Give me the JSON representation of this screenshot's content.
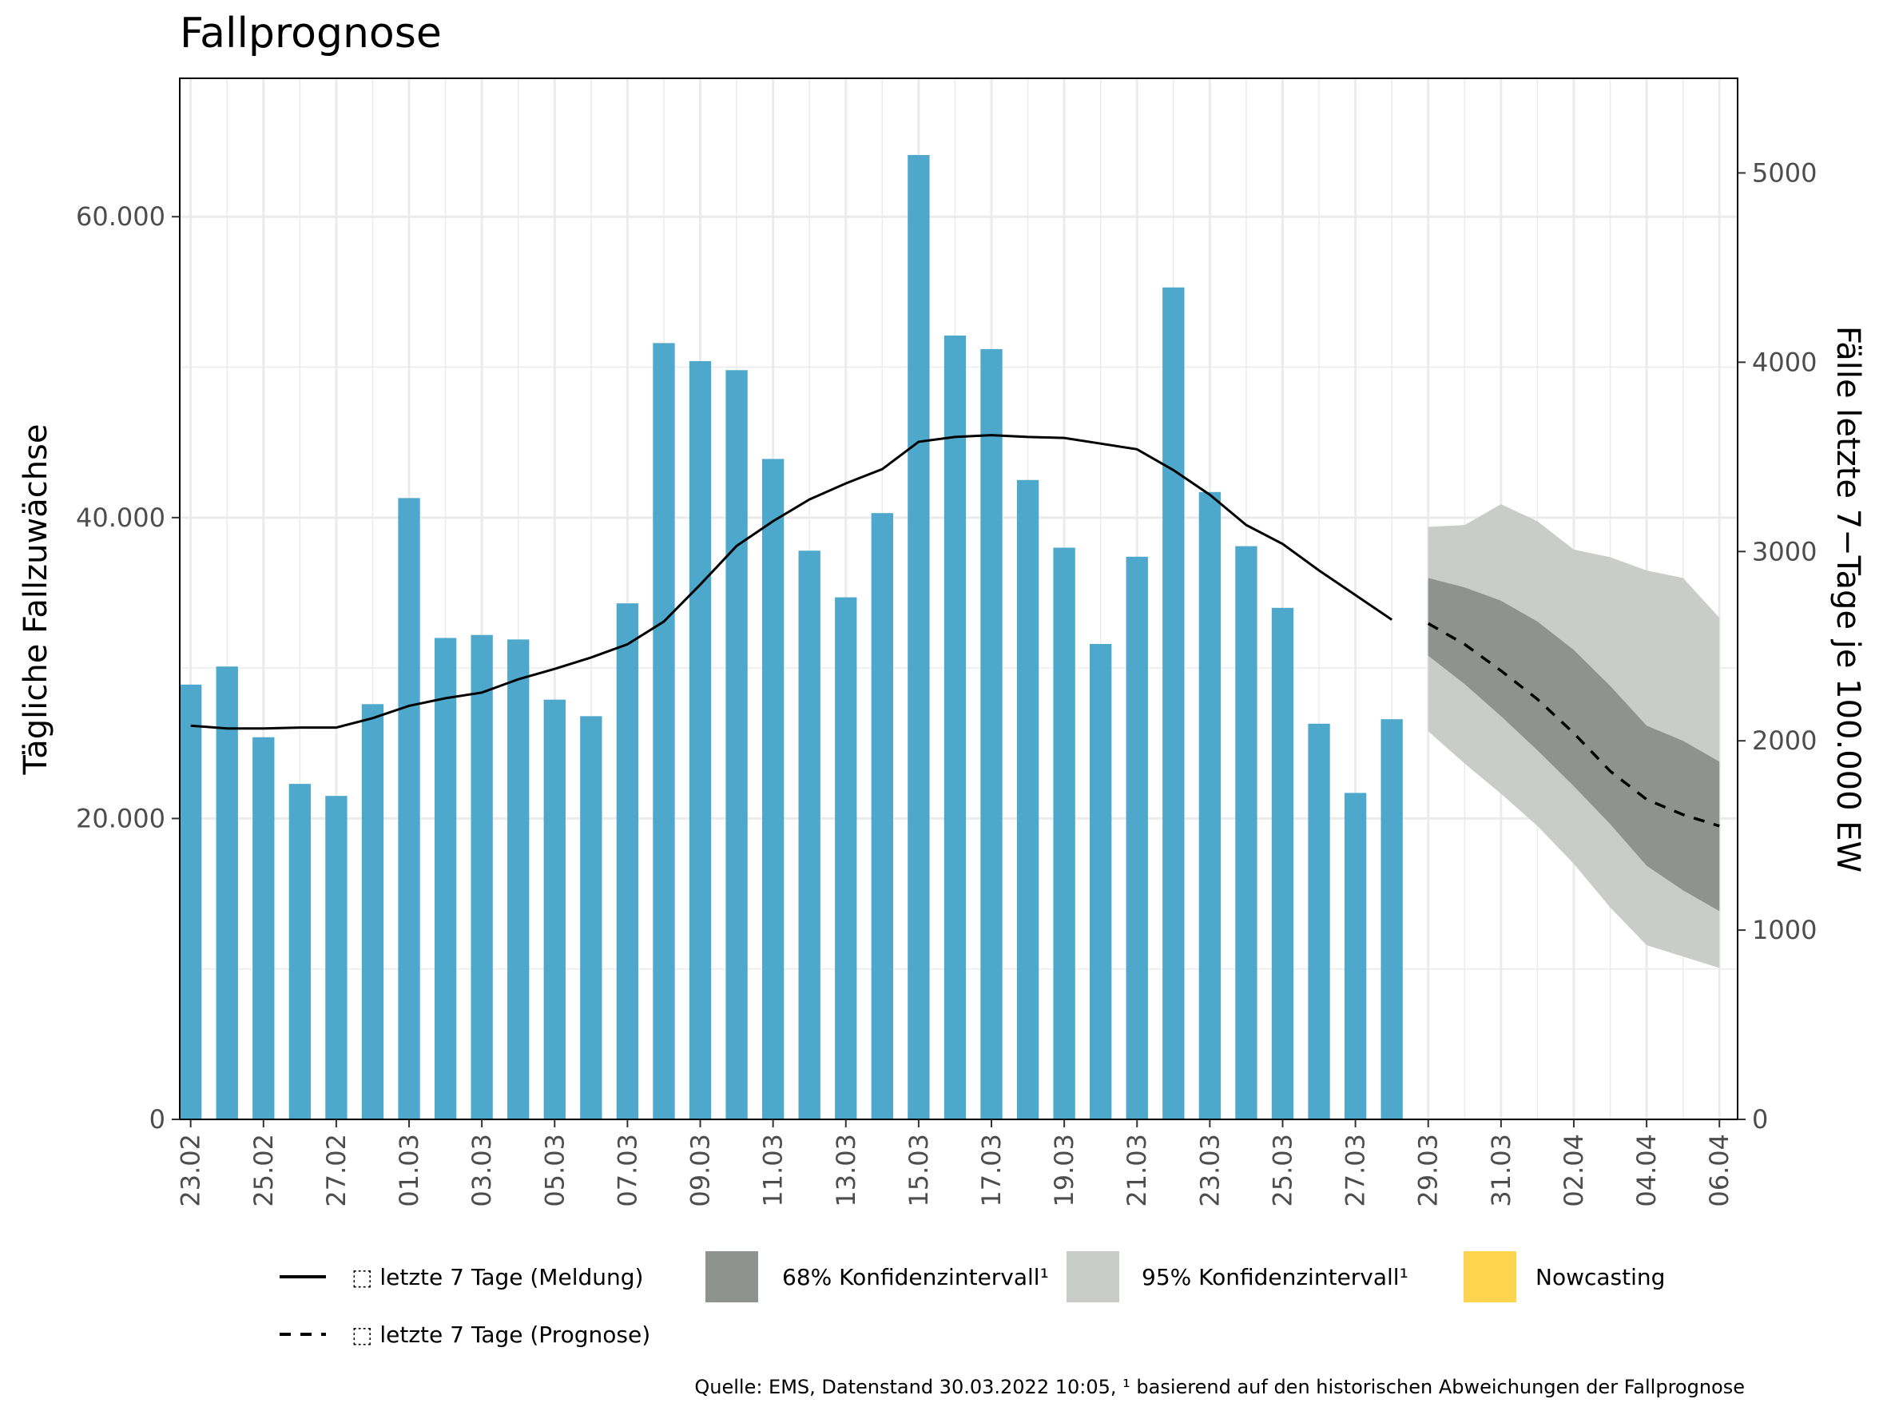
{
  "title": "Fallprognose",
  "source_note": "Quelle: EMS, Datenstand 30.03.2022 10:05, ¹ basierend auf den historischen Abweichungen der Fallprognose",
  "colors": {
    "bars": "#4EA8CB",
    "ci68": "#8E938F",
    "ci95": "#C9CCC9",
    "nowcasting": "#FFD54F",
    "line": "#000000",
    "grid": "#EBEBEB"
  },
  "chart_data": {
    "type": "bar",
    "ylabel_left": "Tägliche Fallzuwächse",
    "ylabel_right": "Fälle letzte 7−Tage je 100.000 EW",
    "ylim_left": [
      0,
      69200
    ],
    "ylim_right": [
      0,
      5500
    ],
    "yticks_left": [
      0,
      20000,
      40000,
      60000
    ],
    "yticks_left_labels": [
      "0",
      "20.000",
      "40.000",
      "60.000"
    ],
    "yticks_right": [
      0,
      1000,
      2000,
      3000,
      4000,
      5000
    ],
    "yticks_right_labels": [
      "0",
      "1000",
      "2000",
      "3000",
      "4000",
      "5000"
    ],
    "x_dates": [
      "23.02",
      "24.02",
      "25.02",
      "26.02",
      "27.02",
      "28.02",
      "01.03",
      "02.03",
      "03.03",
      "04.03",
      "05.03",
      "06.03",
      "07.03",
      "08.03",
      "09.03",
      "10.03",
      "11.03",
      "12.03",
      "13.03",
      "14.03",
      "15.03",
      "16.03",
      "17.03",
      "18.03",
      "19.03",
      "20.03",
      "21.03",
      "22.03",
      "23.03",
      "24.03",
      "25.03",
      "26.03",
      "27.03",
      "28.03",
      "29.03",
      "30.03",
      "31.03",
      "01.04",
      "02.04",
      "03.04",
      "04.04",
      "05.04",
      "06.04"
    ],
    "x_tick_labels": [
      "23.02",
      "25.02",
      "27.02",
      "01.03",
      "03.03",
      "05.03",
      "07.03",
      "09.03",
      "11.03",
      "13.03",
      "15.03",
      "17.03",
      "19.03",
      "21.03",
      "23.03",
      "25.03",
      "27.03",
      "29.03",
      "31.03",
      "02.04",
      "04.04",
      "06.04"
    ],
    "daily_cases": [
      28900,
      30100,
      25400,
      22300,
      21500,
      27600,
      41300,
      32000,
      32200,
      31900,
      27900,
      26800,
      34300,
      51600,
      50400,
      49800,
      43900,
      37800,
      34700,
      40300,
      64100,
      52100,
      51200,
      42500,
      38000,
      31600,
      37400,
      55300,
      41700,
      38100,
      34000,
      26300,
      21700,
      26600
    ],
    "incidence_reported": [
      2080,
      2065,
      2065,
      2070,
      2070,
      2120,
      2185,
      2225,
      2255,
      2325,
      2380,
      2440,
      2510,
      2630,
      2825,
      3030,
      3160,
      3275,
      3360,
      3435,
      3580,
      3605,
      3615,
      3605,
      3600,
      3570,
      3540,
      3430,
      3300,
      3140,
      3040,
      2900,
      2770,
      2640
    ],
    "forecast_dates": [
      "29.03",
      "30.03",
      "31.03",
      "01.04",
      "02.04",
      "03.04",
      "04.04",
      "05.04",
      "06.04"
    ],
    "incidence_forecast": [
      2620,
      2510,
      2370,
      2220,
      2040,
      1840,
      1690,
      1610,
      1550
    ],
    "ci68_upper": [
      2860,
      2810,
      2740,
      2630,
      2480,
      2290,
      2080,
      2000,
      1890
    ],
    "ci68_lower": [
      2450,
      2300,
      2130,
      1950,
      1760,
      1560,
      1340,
      1210,
      1100
    ],
    "ci95_upper": [
      3130,
      3140,
      3250,
      3160,
      3010,
      2970,
      2900,
      2860,
      2650
    ],
    "ci95_lower": [
      2050,
      1880,
      1720,
      1550,
      1350,
      1120,
      920,
      860,
      800
    ]
  },
  "legend": {
    "items": [
      {
        "label": "⬚ letzte 7 Tage (Meldung)",
        "kind": "solid-line"
      },
      {
        "label": "68% Konfidenzintervall¹",
        "kind": "swatch-ci68"
      },
      {
        "label": "95% Konfidenzintervall¹",
        "kind": "swatch-ci95"
      },
      {
        "label": "Nowcasting",
        "kind": "swatch-nowcasting"
      },
      {
        "label": "⬚ letzte 7 Tage (Prognose)",
        "kind": "dashed-line"
      }
    ]
  }
}
